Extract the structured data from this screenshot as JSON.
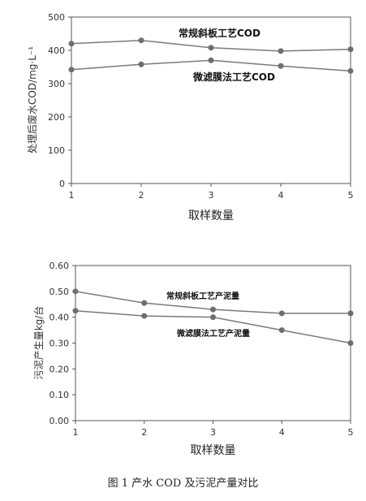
{
  "chart_data": [
    {
      "type": "line",
      "x": [
        1,
        2,
        3,
        4,
        5
      ],
      "xlabel": "取样数量",
      "ylabel": "处理后废水COD/mg·L⁻¹",
      "ylim": [
        0,
        500
      ],
      "yticks": [
        0,
        100,
        200,
        300,
        400,
        500
      ],
      "series": [
        {
          "name": "常规斜板工艺COD",
          "values": [
            420,
            430,
            408,
            398,
            403
          ]
        },
        {
          "name": "微滤膜法工艺COD",
          "values": [
            342,
            358,
            370,
            353,
            338
          ]
        }
      ]
    },
    {
      "type": "line",
      "x": [
        1,
        2,
        3,
        4,
        5
      ],
      "xlabel": "取样数量",
      "ylabel": "污泥产生量kg/台",
      "ylim": [
        0,
        0.6
      ],
      "yticks": [
        "0.00",
        "0.10",
        "0.20",
        "0.30",
        "0.40",
        "0.50",
        "0.60"
      ],
      "series": [
        {
          "name": "常规斜板工艺产泥量",
          "values": [
            0.5,
            0.455,
            0.43,
            0.415,
            0.415
          ]
        },
        {
          "name": "微滤膜法工艺产泥量",
          "values": [
            0.425,
            0.405,
            0.4,
            0.35,
            0.3
          ]
        }
      ]
    }
  ],
  "caption": "图 1  产水 COD 及污泥产量对比",
  "colors": {
    "line": "#7a7a7a",
    "marker": "#6e6e6e",
    "axis": "#555555"
  }
}
